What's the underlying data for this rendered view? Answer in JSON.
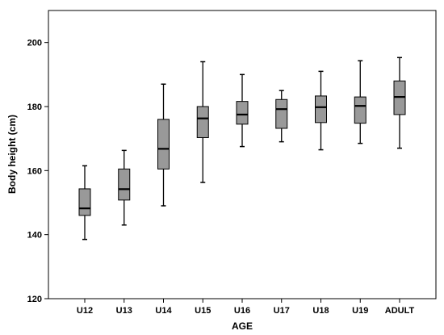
{
  "chart_data": {
    "type": "box",
    "xlabel": "AGE",
    "ylabel": "Body height (cm)",
    "ylim": [
      120,
      210
    ],
    "yticks": [
      120,
      140,
      160,
      180,
      200
    ],
    "grid": false,
    "colors": {
      "box_fill": "#999999",
      "stroke": "#000000",
      "background": "#ffffff"
    },
    "categories": [
      "U12",
      "U13",
      "U14",
      "U15",
      "U16",
      "U17",
      "U18",
      "U19",
      "ADULT"
    ],
    "boxes": [
      {
        "category": "U12",
        "min": 138.5,
        "q1": 146.0,
        "median": 148.2,
        "q3": 154.3,
        "max": 161.5
      },
      {
        "category": "U13",
        "min": 143.0,
        "q1": 150.8,
        "median": 154.2,
        "q3": 160.5,
        "max": 166.3
      },
      {
        "category": "U14",
        "min": 149.0,
        "q1": 160.5,
        "median": 166.8,
        "q3": 176.0,
        "max": 187.0
      },
      {
        "category": "U15",
        "min": 156.3,
        "q1": 170.3,
        "median": 176.3,
        "q3": 180.0,
        "max": 194.0
      },
      {
        "category": "U16",
        "min": 167.5,
        "q1": 174.5,
        "median": 177.5,
        "q3": 181.6,
        "max": 190.0
      },
      {
        "category": "U17",
        "min": 169.0,
        "q1": 173.2,
        "median": 179.2,
        "q3": 182.2,
        "max": 185.0
      },
      {
        "category": "U18",
        "min": 166.5,
        "q1": 175.0,
        "median": 179.8,
        "q3": 183.3,
        "max": 191.0
      },
      {
        "category": "U19",
        "min": 168.5,
        "q1": 174.8,
        "median": 180.2,
        "q3": 183.0,
        "max": 194.3
      },
      {
        "category": "ADULT",
        "min": 167.0,
        "q1": 177.5,
        "median": 183.0,
        "q3": 188.0,
        "max": 195.3
      }
    ]
  }
}
